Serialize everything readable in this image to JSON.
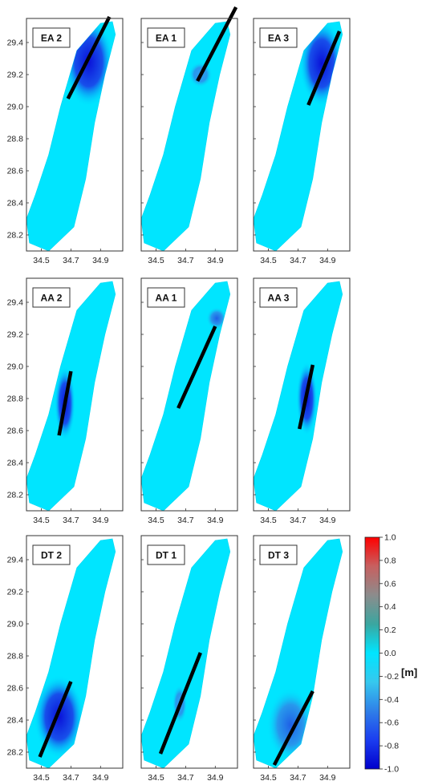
{
  "chart_data": {
    "type": "heatmap",
    "colorbar": {
      "label": "[m]",
      "range": [
        -1.0,
        1.0
      ],
      "ticks": [
        "1.0",
        "0.8",
        "0.6",
        "0.4",
        "0.2",
        "0.0",
        "-0.2",
        "-0.4",
        "-0.6",
        "-0.8",
        "-1.0"
      ],
      "colormap": [
        "#0000cc",
        "#1b3df0",
        "#2f7fe8",
        "#36c8ee",
        "#00e5ff",
        "#3aa6a0",
        "#8c8c8c",
        "#c76060",
        "#ff0000"
      ]
    },
    "axes": {
      "xlim": [
        34.4,
        35.05
      ],
      "ylim": [
        28.1,
        29.55
      ],
      "x_ticks": [
        "34.5",
        "34.7",
        "34.9"
      ],
      "x_tick_values": [
        34.5,
        34.7,
        34.9
      ],
      "y_ticks": [
        "29.4",
        "29.2",
        "29.0",
        "28.8",
        "28.6",
        "28.4",
        "28.2"
      ],
      "y_tick_values": [
        29.4,
        29.2,
        29.0,
        28.8,
        28.6,
        28.4,
        28.2
      ]
    },
    "gulf_outline": [
      [
        34.42,
        28.15
      ],
      [
        34.55,
        28.1
      ],
      [
        34.72,
        28.25
      ],
      [
        34.8,
        28.55
      ],
      [
        34.86,
        28.9
      ],
      [
        34.93,
        29.2
      ],
      [
        35.0,
        29.45
      ],
      [
        34.98,
        29.53
      ],
      [
        34.9,
        29.52
      ],
      [
        34.74,
        29.35
      ],
      [
        34.63,
        29.0
      ],
      [
        34.55,
        28.7
      ],
      [
        34.46,
        28.45
      ],
      [
        34.4,
        28.3
      ]
    ],
    "panels": [
      {
        "title": "EA 2",
        "fault": [
          [
            34.68,
            29.05
          ],
          [
            34.96,
            29.56
          ]
        ],
        "depression": {
          "center": [
            34.82,
            29.28
          ],
          "radius": [
            0.17,
            0.28
          ],
          "min_value": -0.95
        },
        "show_y_ticks": true,
        "show_x_ticks": true
      },
      {
        "title": "EA 1",
        "fault": [
          [
            34.78,
            29.16
          ],
          [
            35.04,
            29.62
          ]
        ],
        "depression": {
          "center": [
            34.8,
            29.2
          ],
          "radius": [
            0.08,
            0.08
          ],
          "min_value": -0.3
        },
        "show_y_ticks": false,
        "show_x_ticks": true
      },
      {
        "title": "EA 3",
        "fault": [
          [
            34.77,
            29.01
          ],
          [
            34.98,
            29.47
          ]
        ],
        "depression": {
          "center": [
            34.86,
            29.27
          ],
          "radius": [
            0.15,
            0.27
          ],
          "min_value": -0.9
        },
        "show_y_ticks": false,
        "show_x_ticks": true
      },
      {
        "title": "AA 2",
        "fault": [
          [
            34.62,
            28.57
          ],
          [
            34.7,
            28.97
          ]
        ],
        "depression": {
          "center": [
            34.66,
            28.77
          ],
          "radius": [
            0.07,
            0.23
          ],
          "min_value": -0.9
        },
        "show_y_ticks": true,
        "show_x_ticks": true
      },
      {
        "title": "AA 1",
        "fault": [
          [
            34.65,
            28.74
          ],
          [
            34.9,
            29.25
          ]
        ],
        "depression": {
          "center": [
            34.91,
            29.3
          ],
          "radius": [
            0.07,
            0.07
          ],
          "min_value": -0.5
        },
        "show_y_ticks": false,
        "show_x_ticks": true
      },
      {
        "title": "AA 3",
        "fault": [
          [
            34.71,
            28.61
          ],
          [
            34.8,
            29.01
          ]
        ],
        "depression": {
          "center": [
            34.76,
            28.8
          ],
          "radius": [
            0.07,
            0.23
          ],
          "min_value": -0.85
        },
        "show_y_ticks": false,
        "show_x_ticks": true
      },
      {
        "title": "DT 2",
        "fault": [
          [
            34.49,
            28.17
          ],
          [
            34.7,
            28.64
          ]
        ],
        "depression": {
          "center": [
            34.62,
            28.42
          ],
          "radius": [
            0.17,
            0.26
          ],
          "min_value": -0.9
        },
        "show_y_ticks": true,
        "show_x_ticks": true
      },
      {
        "title": "DT 1",
        "fault": [
          [
            34.53,
            28.19
          ],
          [
            34.8,
            28.82
          ]
        ],
        "depression": {
          "center": [
            34.66,
            28.5
          ],
          "radius": [
            0.05,
            0.12
          ],
          "min_value": -0.3
        },
        "show_y_ticks": false,
        "show_x_ticks": true
      },
      {
        "title": "DT 3",
        "fault": [
          [
            34.54,
            28.12
          ],
          [
            34.8,
            28.58
          ]
        ],
        "depression": {
          "center": [
            34.65,
            28.37
          ],
          "radius": [
            0.16,
            0.23
          ],
          "min_value": -0.55
        },
        "show_y_ticks": false,
        "show_x_ticks": true
      }
    ]
  }
}
